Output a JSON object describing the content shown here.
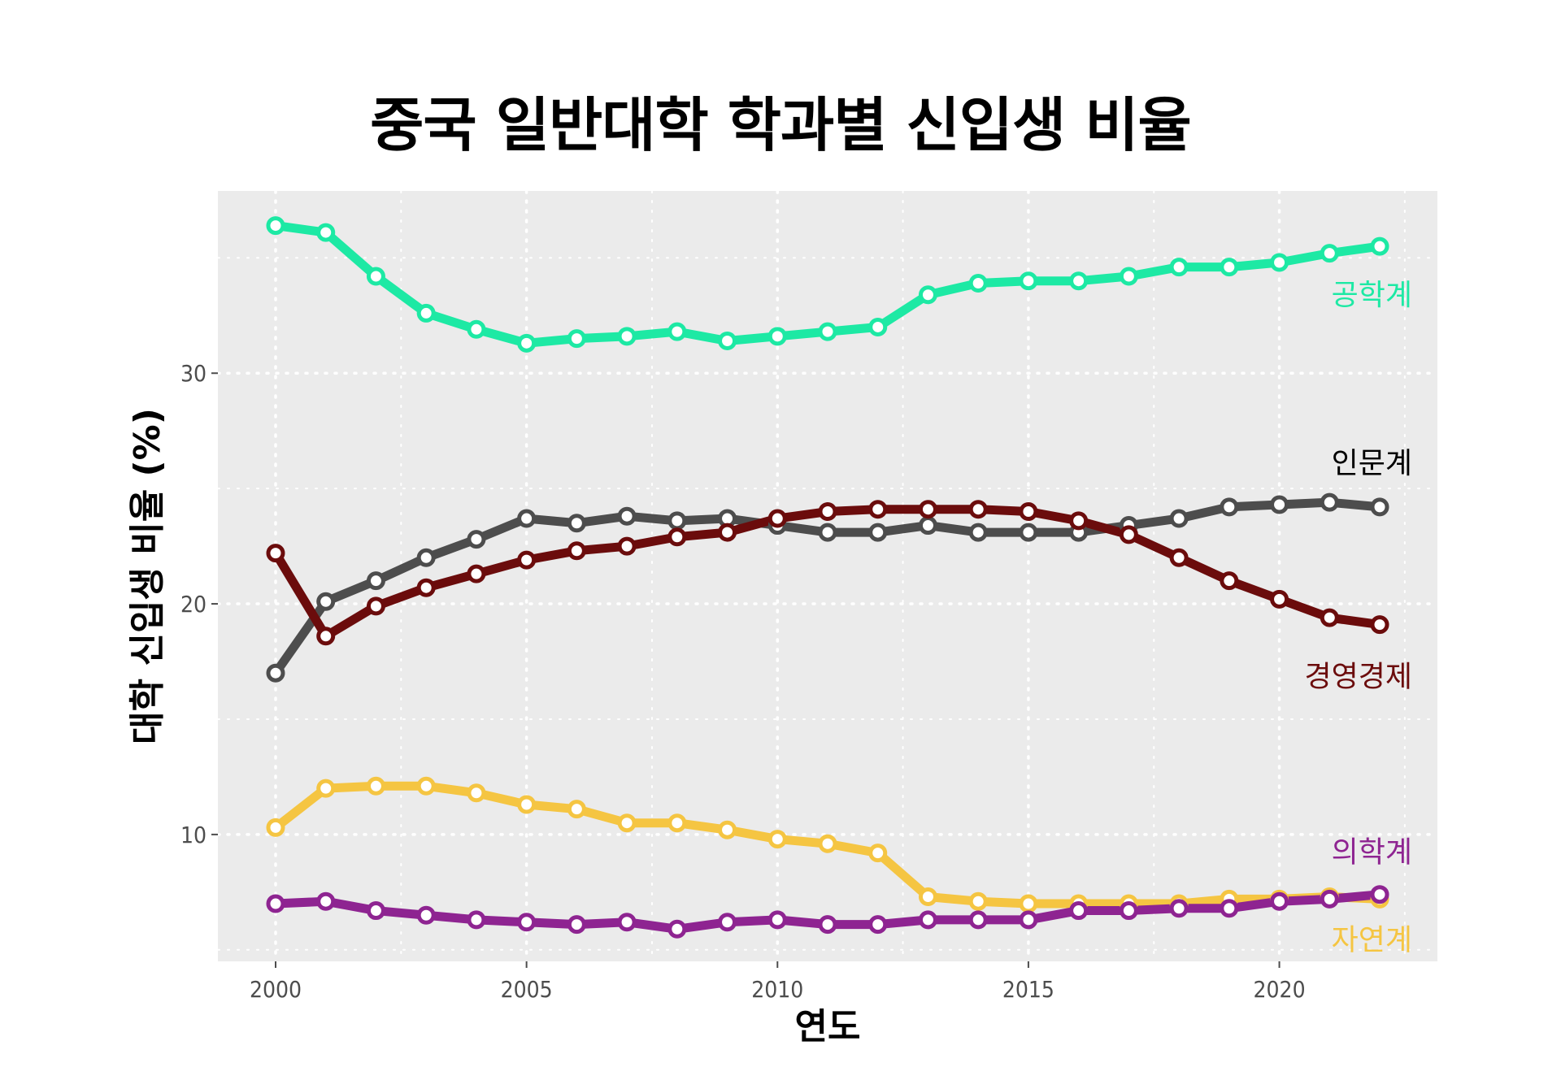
{
  "chart_data": {
    "type": "line",
    "title": "중국 일반대학 학과별 신입생 비율",
    "xlabel": "연도",
    "ylabel": "대학 신입생 비율 (%)",
    "xlim": [
      1998.85,
      2023.15
    ],
    "ylim": [
      4.5,
      37.9
    ],
    "x_ticks": [
      2000,
      2005,
      2010,
      2015,
      2020
    ],
    "y_ticks": [
      10,
      20,
      30
    ],
    "grid": true,
    "background": "#ebebeb",
    "x": [
      2000,
      2001,
      2002,
      2003,
      2004,
      2005,
      2006,
      2007,
      2008,
      2009,
      2010,
      2011,
      2012,
      2013,
      2014,
      2015,
      2016,
      2017,
      2018,
      2019,
      2020,
      2021,
      2022
    ],
    "series": [
      {
        "name": "공학계",
        "color": "#1de9a4",
        "values": [
          36.4,
          36.1,
          34.2,
          32.6,
          31.9,
          31.3,
          31.5,
          31.6,
          31.8,
          31.4,
          31.6,
          31.8,
          32.0,
          33.4,
          33.9,
          34.0,
          34.0,
          34.2,
          34.6,
          34.6,
          34.8,
          35.2,
          35.5
        ]
      },
      {
        "name": "인문계",
        "color": "#4d4d4d",
        "values": [
          17.0,
          20.1,
          21.0,
          22.0,
          22.8,
          23.7,
          23.5,
          23.8,
          23.6,
          23.7,
          23.4,
          23.1,
          23.1,
          23.4,
          23.1,
          23.1,
          23.1,
          23.4,
          23.7,
          24.2,
          24.3,
          24.4,
          24.2
        ]
      },
      {
        "name": "경영경제",
        "color": "#6b0c0c",
        "values": [
          22.2,
          18.6,
          19.9,
          20.7,
          21.3,
          21.9,
          22.3,
          22.5,
          22.9,
          23.1,
          23.7,
          24.0,
          24.1,
          24.1,
          24.1,
          24.0,
          23.6,
          23.0,
          22.0,
          21.0,
          20.2,
          19.4,
          19.1
        ]
      },
      {
        "name": "자연계",
        "color": "#f5c542",
        "values": [
          10.3,
          12.0,
          12.1,
          12.1,
          11.8,
          11.3,
          11.1,
          10.5,
          10.5,
          10.2,
          9.8,
          9.6,
          9.2,
          7.3,
          7.1,
          7.0,
          7.0,
          7.0,
          7.0,
          7.2,
          7.2,
          7.3,
          7.2
        ]
      },
      {
        "name": "의학계",
        "color": "#8e2491",
        "values": [
          7.0,
          7.1,
          6.7,
          6.5,
          6.3,
          6.2,
          6.1,
          6.2,
          5.9,
          6.2,
          6.3,
          6.1,
          6.1,
          6.3,
          6.3,
          6.3,
          6.7,
          6.7,
          6.8,
          6.8,
          7.1,
          7.2,
          7.4
        ]
      }
    ]
  }
}
